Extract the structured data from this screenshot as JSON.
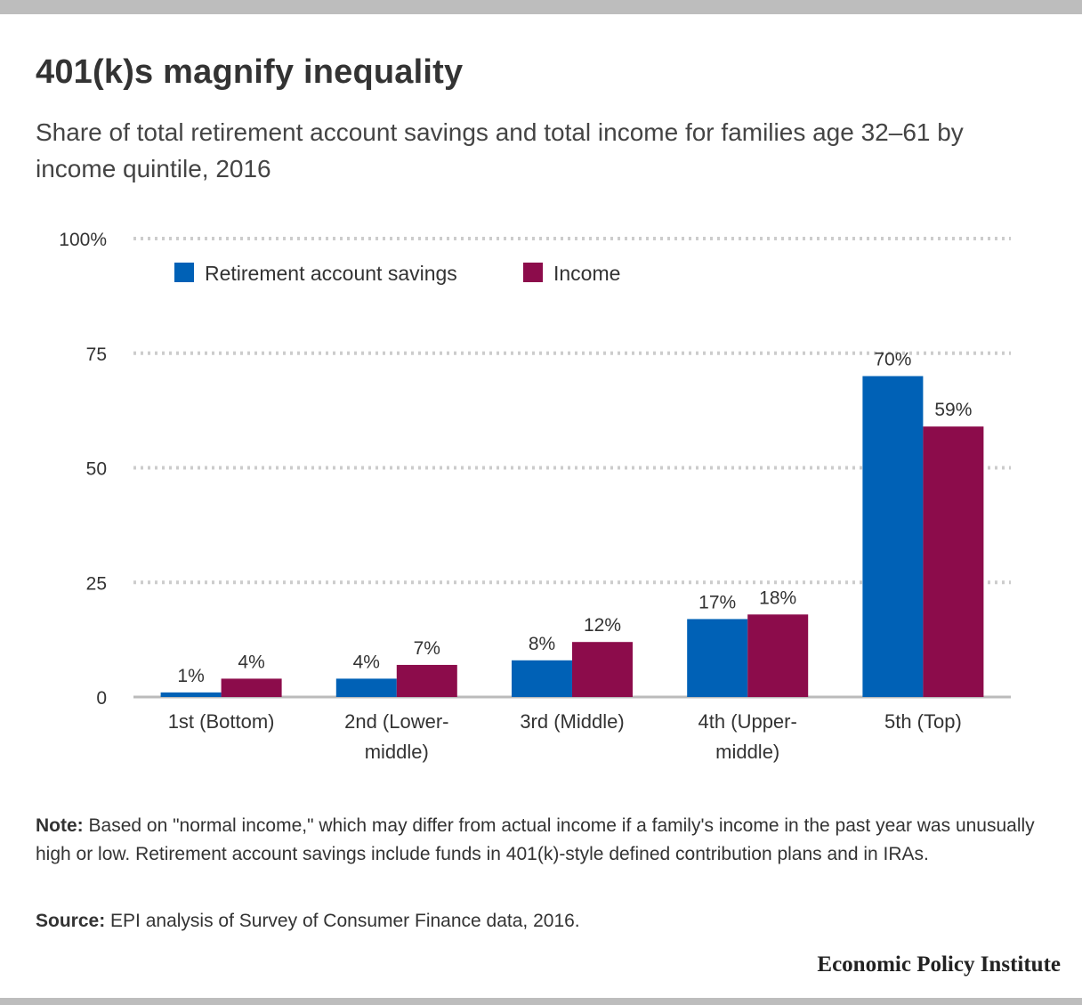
{
  "title": "401(k)s magnify inequality",
  "subtitle": "Share of total retirement account savings and total income for families age 32–61 by income quintile, 2016",
  "note_label": "Note:",
  "note_text": " Based on \"normal income,\" which may differ from actual income if a family's income in the past year was unusually high or low. Retirement account savings include funds in 401(k)-style defined contribution plans and in IRAs.",
  "source_label": "Source:",
  "source_text": " EPI analysis of Survey of Consumer Finance data, 2016.",
  "logo_text": "Economic Policy Institute",
  "colors": {
    "savings": "#0061b6",
    "income": "#8c0c4b",
    "grid": "#cccccc",
    "axis": "#bbbbbb"
  },
  "chart_data": {
    "type": "bar",
    "categories": [
      [
        "1st (Bottom)"
      ],
      [
        "2nd (Lower-",
        "middle)"
      ],
      [
        "3rd (Middle)"
      ],
      [
        "4th (Upper-",
        "middle)"
      ],
      [
        "5th (Top)"
      ]
    ],
    "series": [
      {
        "name": "Retirement account savings",
        "values": [
          1,
          4,
          8,
          17,
          70
        ],
        "labels": [
          "1%",
          "4%",
          "8%",
          "17%",
          "70%"
        ]
      },
      {
        "name": "Income",
        "values": [
          4,
          7,
          12,
          18,
          59
        ],
        "labels": [
          "4%",
          "7%",
          "12%",
          "18%",
          "59%"
        ]
      }
    ],
    "yticks": [
      "0",
      "25",
      "50",
      "75",
      "100%"
    ],
    "ytick_values": [
      0,
      25,
      50,
      75,
      100
    ],
    "ylim": [
      0,
      100
    ],
    "grid": true,
    "legend_position": "top-left"
  }
}
